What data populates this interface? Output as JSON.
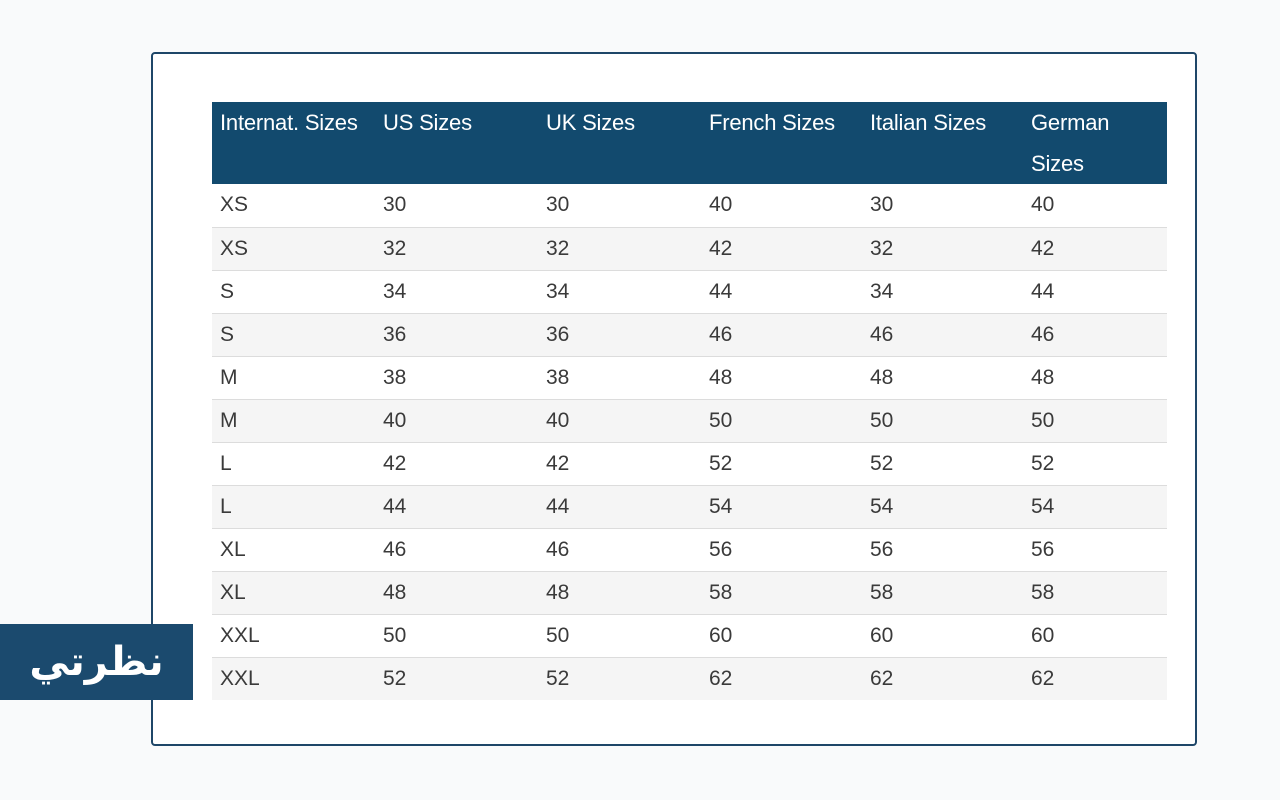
{
  "table": {
    "headers": [
      "Internat. Sizes",
      "US Sizes",
      "UK Sizes",
      "French Sizes",
      "Italian Sizes",
      "German Sizes"
    ],
    "rows": [
      [
        "XS",
        "30",
        "30",
        "40",
        "30",
        "40"
      ],
      [
        "XS",
        "32",
        "32",
        "42",
        "32",
        "42"
      ],
      [
        "S",
        "34",
        "34",
        "44",
        "34",
        "44"
      ],
      [
        "S",
        "36",
        "36",
        "46",
        "46",
        "46"
      ],
      [
        "M",
        "38",
        "38",
        "48",
        "48",
        "48"
      ],
      [
        "M",
        "40",
        "40",
        "50",
        "50",
        "50"
      ],
      [
        "L",
        "42",
        "42",
        "52",
        "52",
        "52"
      ],
      [
        "L",
        "44",
        "44",
        "54",
        "54",
        "54"
      ],
      [
        "XL",
        "46",
        "46",
        "56",
        "56",
        "56"
      ],
      [
        "XL",
        "48",
        "48",
        "58",
        "58",
        "58"
      ],
      [
        "XXL",
        "50",
        "50",
        "60",
        "60",
        "60"
      ],
      [
        "XXL",
        "52",
        "52",
        "62",
        "62",
        "62"
      ]
    ]
  },
  "watermark": {
    "text": "نظرتي"
  },
  "colors": {
    "header_background": "#124a6e",
    "frame_border": "#1e4668",
    "logo_background": "#1b4a6e",
    "zebra_row": "#f5f5f5"
  }
}
